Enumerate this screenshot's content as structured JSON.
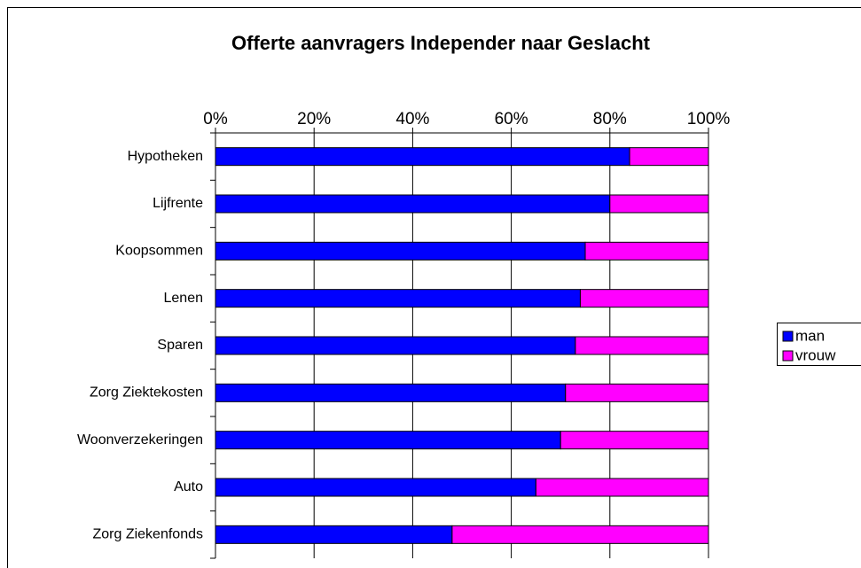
{
  "chart_data": {
    "type": "stacked_barh",
    "title": "Offerte aanvragers Independer naar Geslacht",
    "categories": [
      "Hypotheken",
      "Lijfrente",
      "Koopsommen",
      "Lenen",
      "Sparen",
      "Zorg Ziektekosten",
      "Woonverzekeringen",
      "Auto",
      "Zorg Ziekenfonds"
    ],
    "series": [
      {
        "name": "man",
        "color": "#0000ff",
        "values": [
          84,
          80,
          75,
          74,
          73,
          71,
          70,
          65,
          48
        ]
      },
      {
        "name": "vrouw",
        "color": "#ff00ff",
        "values": [
          16,
          20,
          25,
          26,
          27,
          29,
          30,
          35,
          52
        ]
      }
    ],
    "xlim": [
      0,
      100
    ],
    "xticks": [
      {
        "value": 0,
        "label": "0%"
      },
      {
        "value": 20,
        "label": "20%"
      },
      {
        "value": 40,
        "label": "40%"
      },
      {
        "value": 60,
        "label": "60%"
      },
      {
        "value": 80,
        "label": "80%"
      },
      {
        "value": 100,
        "label": "100%"
      }
    ],
    "grid": true,
    "legend": "right"
  }
}
